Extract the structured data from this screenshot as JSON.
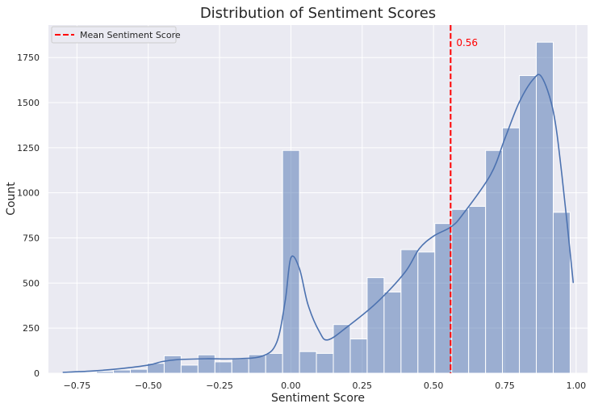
{
  "chart_data": {
    "type": "bar",
    "title": "Distribution of Sentiment Scores",
    "xlabel": "Sentiment Score",
    "ylabel": "Count",
    "xlim": [
      -0.85,
      1.04
    ],
    "ylim": [
      0,
      1930
    ],
    "x_ticks": [
      -0.75,
      -0.5,
      -0.25,
      0.0,
      0.25,
      0.5,
      0.75,
      1.0
    ],
    "x_tick_labels": [
      "−0.75",
      "−0.50",
      "−0.25",
      "0.00",
      "0.25",
      "0.50",
      "0.75",
      "1.00"
    ],
    "y_ticks": [
      0,
      250,
      500,
      750,
      1000,
      1250,
      1500,
      1750
    ],
    "y_tick_labels": [
      "0",
      "250",
      "500",
      "750",
      "1000",
      "1250",
      "1500",
      "1750"
    ],
    "grid": true,
    "legend_position": "top-left",
    "bar_color": "#4c72b0",
    "bins": {
      "start": -0.8,
      "width": 0.0593,
      "counts": [
        3,
        5,
        10,
        18,
        22,
        55,
        97,
        45,
        102,
        63,
        80,
        103,
        110,
        1235,
        120,
        110,
        270,
        190,
        530,
        450,
        685,
        672,
        830,
        908,
        925,
        1235,
        1360,
        1650,
        1835,
        892
      ]
    },
    "kde": {
      "x": [
        -0.8,
        -0.7,
        -0.6,
        -0.5,
        -0.45,
        -0.4,
        -0.3,
        -0.2,
        -0.1,
        -0.05,
        -0.02,
        0.0,
        0.03,
        0.06,
        0.1,
        0.13,
        0.2,
        0.3,
        0.4,
        0.45,
        0.5,
        0.56,
        0.6,
        0.7,
        0.75,
        0.8,
        0.85,
        0.88,
        0.92,
        0.95,
        0.99
      ],
      "y": [
        5,
        12,
        25,
        45,
        65,
        75,
        80,
        80,
        95,
        170,
        400,
        640,
        580,
        380,
        230,
        185,
        260,
        390,
        560,
        690,
        760,
        810,
        875,
        1100,
        1300,
        1500,
        1630,
        1640,
        1450,
        1100,
        500
      ]
    },
    "mean_line": {
      "value": 0.56,
      "label": "0.56",
      "legend": "Mean Sentiment Score",
      "color": "#ff0000"
    }
  }
}
